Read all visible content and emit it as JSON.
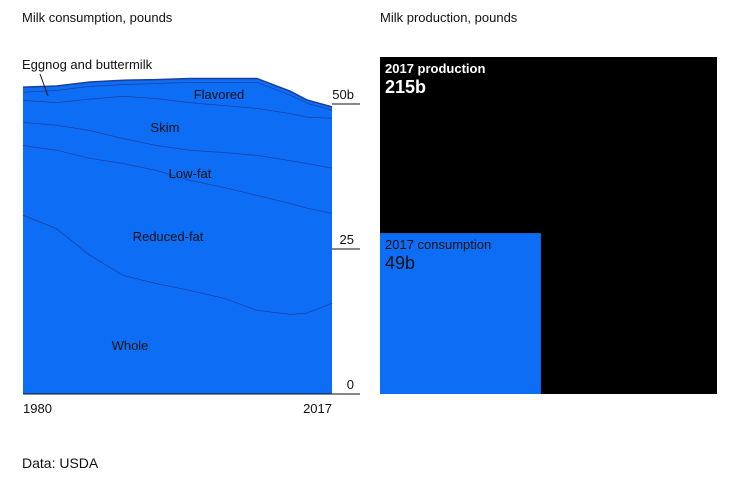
{
  "chart_data": [
    {
      "type": "stacked-area",
      "title": "Milk consumption, pounds",
      "x": [
        1980,
        1984,
        1988,
        1992,
        1996,
        2000,
        2004,
        2008,
        2012,
        2014,
        2017
      ],
      "series": [
        {
          "name": "Whole",
          "color": "#0d6ef5",
          "values": [
            30.9,
            28.6,
            24.0,
            20.5,
            19.1,
            17.9,
            16.6,
            14.5,
            13.8,
            14.0,
            15.7
          ]
        },
        {
          "name": "Reduced-fat",
          "color": "#0d6ef5",
          "values": [
            12.0,
            13.5,
            16.7,
            19.3,
            19.5,
            19.0,
            19.1,
            19.8,
            19.1,
            18.1,
            15.5
          ]
        },
        {
          "name": "Low-fat",
          "color": "#0d6ef5",
          "values": [
            4.0,
            4.3,
            4.8,
            4.3,
            4.3,
            5.2,
            6.0,
            6.9,
            7.4,
            7.7,
            7.8
          ]
        },
        {
          "name": "Skim",
          "color": "#0d6ef5",
          "values": [
            3.8,
            3.9,
            5.4,
            7.3,
            8.1,
            8.2,
            8.1,
            8.1,
            8.1,
            8.0,
            8.6
          ]
        },
        {
          "name": "Flavored",
          "color": "#0d6ef5",
          "values": [
            1.4,
            2.1,
            2.2,
            2.0,
            2.6,
            3.5,
            4.0,
            4.5,
            3.2,
            2.4,
            1.4
          ]
        },
        {
          "name": "Eggnog and buttermilk",
          "color": "#0d6ef5",
          "values": [
            0.8,
            0.7,
            0.7,
            0.7,
            0.6,
            0.6,
            0.6,
            0.6,
            0.6,
            0.5,
            0.5
          ]
        }
      ],
      "xlim": [
        1980,
        2017
      ],
      "xticks": [
        1980,
        2017
      ],
      "ylim": [
        0,
        55
      ],
      "yticks": [
        0,
        25,
        {
          "value": 50,
          "label": "50b"
        }
      ]
    },
    {
      "type": "square-comparison",
      "title": "Milk production, pounds",
      "categories": [
        "2017 production",
        "2017 consumption"
      ],
      "values": [
        215,
        49
      ],
      "value_labels": [
        "215b",
        "49b"
      ],
      "colors": [
        "#000000",
        "#0d6ef5"
      ]
    }
  ],
  "source": "Data: USDA"
}
